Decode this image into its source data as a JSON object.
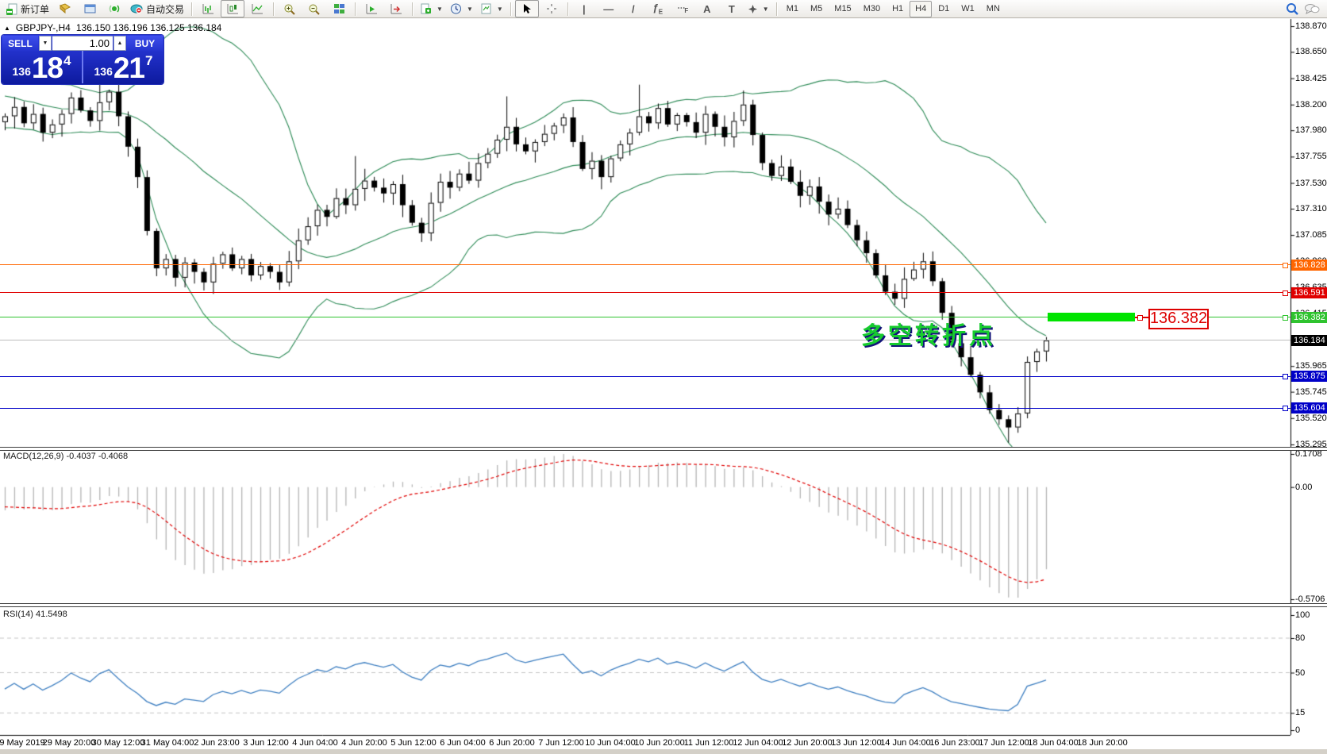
{
  "toolbar": {
    "new_order_label": "新订单",
    "autotrade_label": "自动交易",
    "timeframes": [
      "M1",
      "M5",
      "M15",
      "M30",
      "H1",
      "H4",
      "D1",
      "W1",
      "MN"
    ],
    "active_timeframe": "H4"
  },
  "symbol_header": {
    "symbol": "GBPJPY-,H4",
    "ohlc": "136.150 136.196 136.125 136.184"
  },
  "trade_panel": {
    "sell_label": "SELL",
    "buy_label": "BUY",
    "volume": "1.00",
    "sell_price_prefix": "136",
    "sell_price_big": "18",
    "sell_price_sup": "4",
    "buy_price_prefix": "136",
    "buy_price_big": "21",
    "buy_price_sup": "7"
  },
  "price_axis": {
    "ticks": [
      "138.870",
      "138.650",
      "138.425",
      "138.200",
      "137.980",
      "137.755",
      "137.530",
      "137.310",
      "137.085",
      "136.860",
      "136.635",
      "136.415",
      "136.190",
      "135.965",
      "135.745",
      "135.520",
      "135.295"
    ],
    "tags": [
      {
        "text": "136.828",
        "price": 136.828,
        "bg": "#ff6600"
      },
      {
        "text": "136.591",
        "price": 136.591,
        "bg": "#e00000"
      },
      {
        "text": "136.382",
        "price": 136.382,
        "bg": "#2fc32f"
      },
      {
        "text": "136.184",
        "price": 136.184,
        "bg": "#000000"
      },
      {
        "text": "135.875",
        "price": 135.875,
        "bg": "#0000c8"
      },
      {
        "text": "135.604",
        "price": 135.604,
        "bg": "#0000c8"
      }
    ]
  },
  "main_chart": {
    "hlines": [
      {
        "price": 136.828,
        "color": "#ff6600",
        "marker": true
      },
      {
        "price": 136.591,
        "color": "#e00000",
        "marker": true
      },
      {
        "price": 136.382,
        "color": "#2fc32f",
        "marker": true
      },
      {
        "price": 136.184,
        "color": "#bdbdbd",
        "marker": false
      },
      {
        "price": 135.875,
        "color": "#0000c8",
        "marker": true
      },
      {
        "price": 135.604,
        "color": "#0000c8",
        "marker": true
      }
    ],
    "annotation": {
      "text": "多空转折点",
      "color": "#17cc2e"
    },
    "callout": {
      "text": "136.382"
    },
    "highlight": {
      "price": 136.382
    }
  },
  "macd": {
    "label": "MACD(12,26,9)",
    "values": "-0.4037 -0.4068",
    "axis": [
      "0.1708",
      "0.00",
      "-0.5706"
    ]
  },
  "rsi": {
    "label": "RSI(14)",
    "value": "41.5498",
    "axis": [
      "100",
      "80",
      "50",
      "15",
      "0"
    ]
  },
  "time_axis": [
    "29 May 2019",
    "29 May 20:00",
    "30 May 12:00",
    "31 May 04:00",
    "2 Jun 23:00",
    "3 Jun 12:00",
    "4 Jun 04:00",
    "4 Jun 20:00",
    "5 Jun 12:00",
    "6 Jun 04:00",
    "6 Jun 20:00",
    "7 Jun 12:00",
    "10 Jun 04:00",
    "10 Jun 20:00",
    "11 Jun 12:00",
    "12 Jun 04:00",
    "12 Jun 20:00",
    "13 Jun 12:00",
    "14 Jun 04:00",
    "16 Jun 23:00",
    "17 Jun 12:00",
    "18 Jun 04:00",
    "18 Jun 20:00"
  ],
  "chart_data": {
    "type": "candlestick",
    "symbol": "GBPJPY",
    "timeframe": "H4",
    "title": "GBPJPY-,H4",
    "ylim": [
      135.295,
      138.87
    ],
    "price_ticks": [
      138.87,
      138.65,
      138.425,
      138.2,
      137.98,
      137.755,
      137.53,
      137.31,
      137.085,
      136.86,
      136.635,
      136.415,
      136.19,
      135.965,
      135.745,
      135.52,
      135.295
    ],
    "levels": {
      "orange": 136.828,
      "red": 136.591,
      "green": 136.382,
      "bid": 136.184,
      "blue_upper": 135.875,
      "blue_lower": 135.604
    },
    "prehistory_closes": [
      138.55,
      138.48,
      138.52,
      138.4,
      138.45,
      138.36,
      138.42,
      138.3,
      138.35,
      138.28,
      138.32,
      138.22,
      138.28,
      138.18,
      138.24,
      138.12,
      138.18,
      138.08,
      138.14,
      138.05
    ],
    "closes": [
      138.1,
      138.18,
      138.04,
      138.12,
      137.96,
      138.03,
      138.12,
      138.26,
      138.15,
      138.06,
      138.22,
      138.31,
      138.1,
      137.84,
      137.58,
      137.12,
      136.8,
      136.88,
      136.72,
      136.85,
      136.77,
      136.68,
      136.84,
      136.92,
      136.8,
      136.88,
      136.74,
      136.82,
      136.77,
      136.68,
      136.86,
      137.04,
      137.16,
      137.3,
      137.24,
      137.4,
      137.34,
      137.48,
      137.55,
      137.49,
      137.44,
      137.52,
      137.34,
      137.19,
      137.1,
      137.36,
      137.54,
      137.49,
      137.61,
      137.55,
      137.7,
      137.78,
      137.9,
      138.01,
      137.86,
      137.8,
      137.88,
      137.95,
      138.02,
      138.09,
      137.88,
      137.65,
      137.72,
      137.58,
      137.74,
      137.86,
      137.96,
      138.1,
      138.04,
      138.17,
      138.03,
      138.11,
      138.05,
      137.96,
      138.12,
      138.01,
      137.92,
      138.06,
      138.2,
      137.94,
      137.7,
      137.59,
      137.67,
      137.54,
      137.42,
      137.5,
      137.37,
      137.26,
      137.31,
      137.17,
      137.04,
      136.93,
      136.74,
      136.6,
      136.54,
      136.71,
      136.79,
      136.86,
      136.69,
      136.42,
      136.16,
      136.04,
      135.89,
      135.74,
      135.59,
      135.51,
      135.44,
      135.56,
      136.0,
      136.09,
      136.184
    ],
    "wick_overrides": {
      "10": {
        "high": 138.42
      },
      "37": {
        "high": 137.76
      },
      "53": {
        "high": 138.27
      },
      "67": {
        "high": 138.37
      },
      "78": {
        "high": 138.32
      },
      "106": {
        "low": 135.31
      }
    },
    "bollinger": {
      "period": 20,
      "deviation": 2.0,
      "color": "#2e8b57"
    },
    "macd_scale": {
      "max": 0.1708,
      "min": -0.5706
    },
    "colors": {
      "candle_up": "#ffffff",
      "candle_down": "#000000",
      "candle_border": "#000000",
      "macd_hist": "#b4b4b4",
      "macd_signal": "#e00000",
      "rsi_line": "#3e7fc1",
      "rsi_levels_dash": "#c4c4c4"
    }
  }
}
